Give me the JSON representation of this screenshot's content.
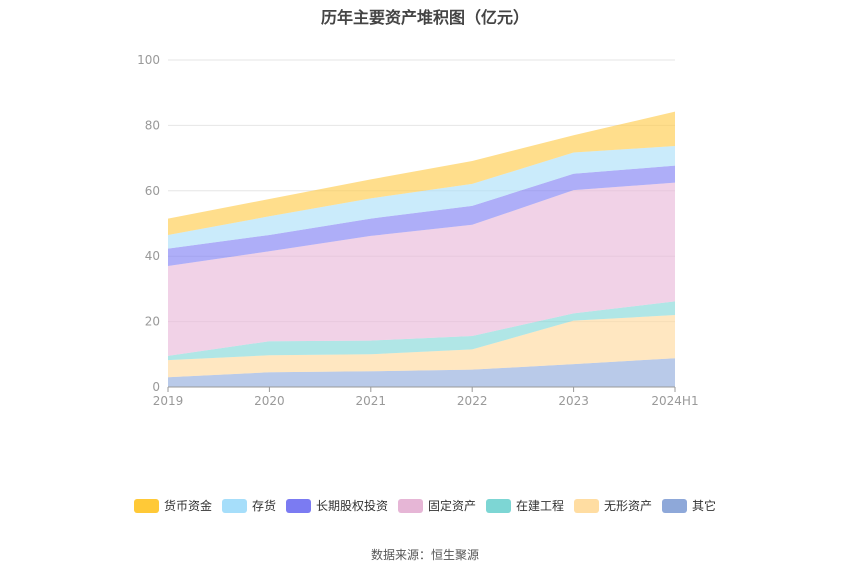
{
  "chart_data": {
    "type": "area",
    "title": "历年主要资产堆积图（亿元）",
    "categories": [
      "2019",
      "2020",
      "2021",
      "2022",
      "2023",
      "2024H1"
    ],
    "ylim": [
      0,
      100
    ],
    "yticks": [
      0,
      20,
      40,
      60,
      80,
      100
    ],
    "grid": true,
    "legend_position": "bottom",
    "stacked": true,
    "series": [
      {
        "name": "其它",
        "color": "#8eaadb",
        "values": [
          3.0,
          4.5,
          4.8,
          5.3,
          7.0,
          8.8
        ]
      },
      {
        "name": "无形资产",
        "color": "#ffd99b",
        "values": [
          5.2,
          5.2,
          5.2,
          6.2,
          13.3,
          13.2
        ]
      },
      {
        "name": "在建工程",
        "color": "#7fd6d6",
        "values": [
          1.3,
          4.3,
          4.2,
          4.1,
          2.2,
          4.2
        ]
      },
      {
        "name": "固定资产",
        "color": "#e8b7d8",
        "values": [
          27.5,
          27.5,
          32.0,
          34.0,
          37.7,
          36.3
        ]
      },
      {
        "name": "长期股权投资",
        "color": "#7d7cf4",
        "values": [
          5.3,
          5.0,
          5.3,
          5.8,
          5.0,
          5.2
        ]
      },
      {
        "name": "存货",
        "color": "#a9dff8",
        "values": [
          4.2,
          5.7,
          6.2,
          6.7,
          6.5,
          6.0
        ]
      },
      {
        "name": "货币资金",
        "color": "#ffca45",
        "values": [
          5.0,
          5.3,
          5.8,
          7.0,
          5.3,
          10.5
        ]
      }
    ],
    "legend_order": [
      "货币资金",
      "存货",
      "长期股权投资",
      "固定资产",
      "在建工程",
      "无形资产",
      "其它"
    ],
    "source": "数据来源：恒生聚源"
  }
}
